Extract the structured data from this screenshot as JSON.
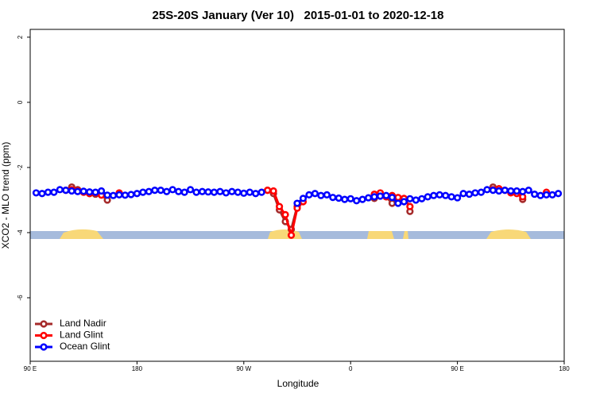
{
  "chart_data": {
    "type": "line",
    "title": "25S-20S January (Ver 10)   2015-01-01 to 2020-12-18",
    "x_label": "Longitude",
    "y_label": "XCO2 - MLO trend (ppm)",
    "xlim": [
      90,
      540
    ],
    "ylim": [
      -7.95,
      2.24
    ],
    "xticks": [
      {
        "value": 90,
        "label": "90 E"
      },
      180,
      {
        "value": 270,
        "label": "90 W"
      },
      {
        "value": 360,
        "label": "0"
      },
      {
        "value": 450,
        "label": "90 E"
      },
      {
        "value": 540,
        "label": "180"
      }
    ],
    "yticks": [
      -6,
      -4,
      -2,
      0,
      2
    ],
    "legend": "lower left",
    "x": [
      95,
      100,
      105,
      110,
      115,
      120,
      125,
      130,
      135,
      140,
      145,
      150,
      155,
      160,
      165,
      170,
      175,
      180,
      185,
      190,
      195,
      200,
      205,
      210,
      215,
      220,
      225,
      230,
      235,
      240,
      245,
      250,
      255,
      260,
      265,
      270,
      275,
      280,
      285,
      290,
      295,
      300,
      305,
      310,
      315,
      320,
      325,
      330,
      335,
      340,
      345,
      350,
      355,
      360,
      365,
      370,
      375,
      380,
      385,
      390,
      395,
      400,
      405,
      410,
      415,
      420,
      425,
      430,
      435,
      440,
      445,
      450,
      455,
      460,
      465,
      470,
      475,
      480,
      485,
      490,
      495,
      500,
      505,
      510,
      515,
      520,
      525,
      530,
      535
    ],
    "series": [
      {
        "name": "Land Nadir",
        "color": "#a52a2a",
        "values": [
          null,
          null,
          null,
          null,
          null,
          null,
          -2.6,
          -2.68,
          -2.74,
          -2.8,
          -2.82,
          -2.84,
          -3.0,
          null,
          null,
          null,
          null,
          null,
          null,
          null,
          null,
          null,
          null,
          null,
          null,
          null,
          null,
          null,
          null,
          null,
          null,
          null,
          null,
          null,
          null,
          null,
          null,
          null,
          null,
          -2.7,
          -2.8,
          -3.3,
          -3.66,
          -3.9,
          -3.2,
          null,
          null,
          null,
          null,
          null,
          null,
          null,
          null,
          null,
          null,
          null,
          null,
          -2.95,
          null,
          -2.9,
          -3.1,
          -2.95,
          null,
          -3.35,
          null,
          null,
          null,
          null,
          null,
          null,
          null,
          null,
          null,
          null,
          null,
          null,
          null,
          -2.6,
          -2.68,
          null,
          null,
          null,
          -2.98,
          null,
          null,
          null,
          null,
          null,
          null
        ]
      },
      {
        "name": "Land Glint",
        "color": "#ff0000",
        "values": [
          null,
          null,
          null,
          null,
          null,
          -2.7,
          -2.68,
          -2.72,
          -2.76,
          -2.8,
          -2.78,
          -2.85,
          null,
          null,
          -2.78,
          null,
          null,
          null,
          null,
          null,
          null,
          null,
          null,
          null,
          null,
          null,
          null,
          null,
          null,
          null,
          null,
          null,
          null,
          null,
          null,
          null,
          null,
          null,
          null,
          -2.7,
          -2.72,
          -3.2,
          -3.45,
          -4.08,
          -3.25,
          -3.05,
          null,
          null,
          null,
          null,
          null,
          null,
          null,
          null,
          null,
          null,
          null,
          -2.82,
          -2.78,
          -2.9,
          -2.86,
          -2.92,
          -2.95,
          -3.2,
          null,
          null,
          null,
          null,
          null,
          null,
          null,
          null,
          null,
          null,
          null,
          null,
          null,
          -2.68,
          -2.65,
          -2.7,
          -2.78,
          -2.8,
          -2.9,
          null,
          null,
          null,
          -2.76,
          null,
          null
        ]
      },
      {
        "name": "Ocean Glint",
        "color": "#0000ff",
        "values": [
          -2.78,
          -2.8,
          -2.76,
          -2.76,
          -2.68,
          -2.7,
          -2.72,
          -2.74,
          -2.73,
          -2.75,
          -2.76,
          -2.72,
          -2.85,
          -2.86,
          -2.84,
          -2.85,
          -2.83,
          -2.8,
          -2.76,
          -2.74,
          -2.7,
          -2.7,
          -2.74,
          -2.68,
          -2.74,
          -2.76,
          -2.68,
          -2.76,
          -2.74,
          -2.75,
          -2.76,
          -2.74,
          -2.78,
          -2.74,
          -2.76,
          -2.79,
          -2.76,
          -2.8,
          -2.76,
          null,
          null,
          null,
          null,
          null,
          -3.1,
          -2.95,
          -2.84,
          -2.8,
          -2.86,
          -2.84,
          -2.92,
          -2.94,
          -2.98,
          -2.96,
          -3.02,
          -2.98,
          -2.93,
          -2.9,
          -2.88,
          -2.86,
          -2.92,
          -3.1,
          -3.05,
          -2.96,
          -3.0,
          -2.96,
          -2.9,
          -2.86,
          -2.84,
          -2.86,
          -2.9,
          -2.93,
          -2.8,
          -2.82,
          -2.78,
          -2.76,
          -2.68,
          -2.7,
          -2.72,
          -2.7,
          -2.72,
          -2.72,
          -2.74,
          -2.7,
          -2.82,
          -2.86,
          -2.84,
          -2.84,
          -2.8
        ]
      }
    ]
  }
}
